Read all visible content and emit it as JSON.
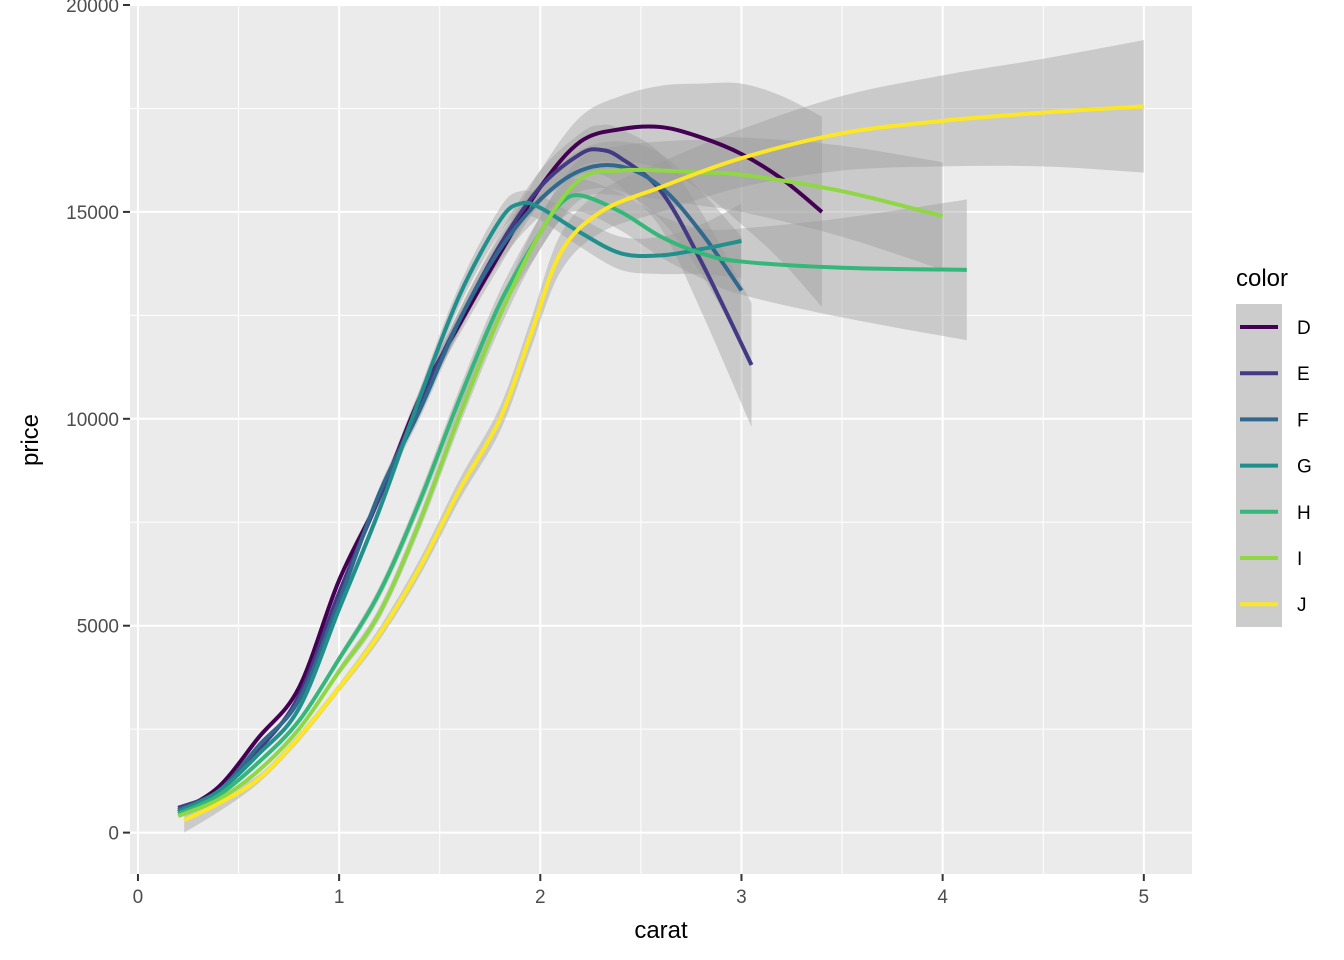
{
  "chart_data": {
    "type": "line",
    "title": "",
    "xlabel": "carat",
    "ylabel": "price",
    "xlim": [
      -0.0395,
      5.2395
    ],
    "ylim": [
      -1000,
      20000
    ],
    "x_ticks": [
      0,
      1,
      2,
      3,
      4,
      5
    ],
    "y_ticks": [
      0,
      5000,
      10000,
      15000,
      20000
    ],
    "x_tick_labels": [
      "0",
      "1",
      "2",
      "3",
      "4",
      "5"
    ],
    "y_tick_labels": [
      "0",
      "5000",
      "10000",
      "15000",
      "20000"
    ],
    "grid": true,
    "legend": {
      "title": "color",
      "position": "right"
    },
    "series": [
      {
        "name": "D",
        "color": "#440154",
        "x": [
          0.2,
          0.4,
          0.6,
          0.8,
          1.0,
          1.2,
          1.4,
          1.6,
          1.8,
          2.0,
          2.2,
          2.4,
          2.6,
          2.8,
          3.0,
          3.2,
          3.4
        ],
        "y": [
          500,
          1100,
          2300,
          3500,
          6100,
          8100,
          10500,
          12300,
          14000,
          15600,
          16700,
          17000,
          17050,
          16800,
          16400,
          15800,
          15000
        ],
        "band": [
          0,
          0,
          0,
          0,
          100,
          150,
          200,
          250,
          300,
          400,
          600,
          800,
          1000,
          1300,
          1700,
          2000,
          2300
        ]
      },
      {
        "name": "E",
        "color": "#443a83",
        "x": [
          0.2,
          0.4,
          0.6,
          0.8,
          1.0,
          1.2,
          1.4,
          1.6,
          1.8,
          2.0,
          2.2,
          2.3,
          2.4,
          2.6,
          2.8,
          3.05
        ],
        "y": [
          600,
          1000,
          2000,
          3300,
          5800,
          8100,
          10400,
          12400,
          14200,
          15600,
          16400,
          16500,
          16300,
          15500,
          13800,
          11300
        ],
        "band": [
          0,
          0,
          0,
          0,
          100,
          150,
          200,
          250,
          300,
          400,
          500,
          600,
          700,
          900,
          1200,
          1500
        ]
      },
      {
        "name": "F",
        "color": "#31688e",
        "x": [
          0.2,
          0.4,
          0.6,
          0.8,
          1.0,
          1.2,
          1.4,
          1.6,
          1.8,
          2.0,
          2.2,
          2.4,
          2.6,
          2.8,
          3.0
        ],
        "y": [
          550,
          1000,
          2100,
          3200,
          5600,
          8200,
          10200,
          12400,
          14100,
          15300,
          16000,
          16100,
          15600,
          14500,
          13100
        ],
        "band": [
          0,
          0,
          0,
          0,
          100,
          150,
          200,
          250,
          300,
          400,
          500,
          600,
          800,
          1000,
          1300
        ]
      },
      {
        "name": "G",
        "color": "#21908c",
        "x": [
          0.2,
          0.4,
          0.6,
          0.8,
          1.0,
          1.2,
          1.4,
          1.6,
          1.8,
          1.9,
          2.0,
          2.2,
          2.4,
          2.6,
          2.8,
          3.0
        ],
        "y": [
          500,
          1000,
          1900,
          3000,
          5400,
          7800,
          10500,
          13000,
          14800,
          15200,
          15100,
          14500,
          14000,
          13950,
          14100,
          14300
        ],
        "band": [
          0,
          0,
          0,
          0,
          100,
          150,
          200,
          250,
          300,
          300,
          300,
          350,
          400,
          450,
          600,
          900
        ]
      },
      {
        "name": "H",
        "color": "#35b779",
        "x": [
          0.2,
          0.4,
          0.6,
          0.8,
          1.0,
          1.2,
          1.4,
          1.6,
          1.8,
          2.0,
          2.1,
          2.2,
          2.4,
          2.6,
          2.8,
          3.0,
          3.5,
          4.12
        ],
        "y": [
          450,
          900,
          1700,
          2700,
          4200,
          5800,
          8000,
          10500,
          12800,
          14500,
          15200,
          15400,
          15000,
          14400,
          14000,
          13800,
          13650,
          13600
        ],
        "band": [
          0,
          0,
          0,
          0,
          100,
          150,
          200,
          250,
          300,
          400,
          400,
          400,
          450,
          500,
          600,
          800,
          1200,
          1700
        ]
      },
      {
        "name": "I",
        "color": "#8fd744",
        "x": [
          0.2,
          0.4,
          0.6,
          0.8,
          1.0,
          1.2,
          1.4,
          1.6,
          1.8,
          2.0,
          2.2,
          2.4,
          2.6,
          2.8,
          3.0,
          3.5,
          4.0
        ],
        "y": [
          400,
          800,
          1500,
          2500,
          3900,
          5300,
          7500,
          10100,
          12500,
          14500,
          15800,
          16000,
          16000,
          15950,
          15900,
          15500,
          14900
        ],
        "band": [
          0,
          0,
          0,
          0,
          100,
          150,
          200,
          250,
          300,
          400,
          500,
          600,
          700,
          800,
          900,
          1100,
          1300
        ]
      },
      {
        "name": "J",
        "color": "#fde725",
        "x": [
          0.23,
          0.4,
          0.6,
          0.8,
          1.0,
          1.2,
          1.4,
          1.6,
          1.8,
          1.95,
          2.1,
          2.3,
          2.6,
          3.0,
          3.5,
          4.0,
          4.5,
          5.0
        ],
        "y": [
          300,
          700,
          1300,
          2300,
          3500,
          4800,
          6400,
          8300,
          10000,
          12000,
          14000,
          15000,
          15600,
          16300,
          16900,
          17200,
          17400,
          17550
        ],
        "band": [
          300,
          200,
          100,
          100,
          100,
          150,
          200,
          250,
          300,
          350,
          450,
          500,
          600,
          700,
          900,
          1100,
          1300,
          1600
        ]
      }
    ]
  }
}
